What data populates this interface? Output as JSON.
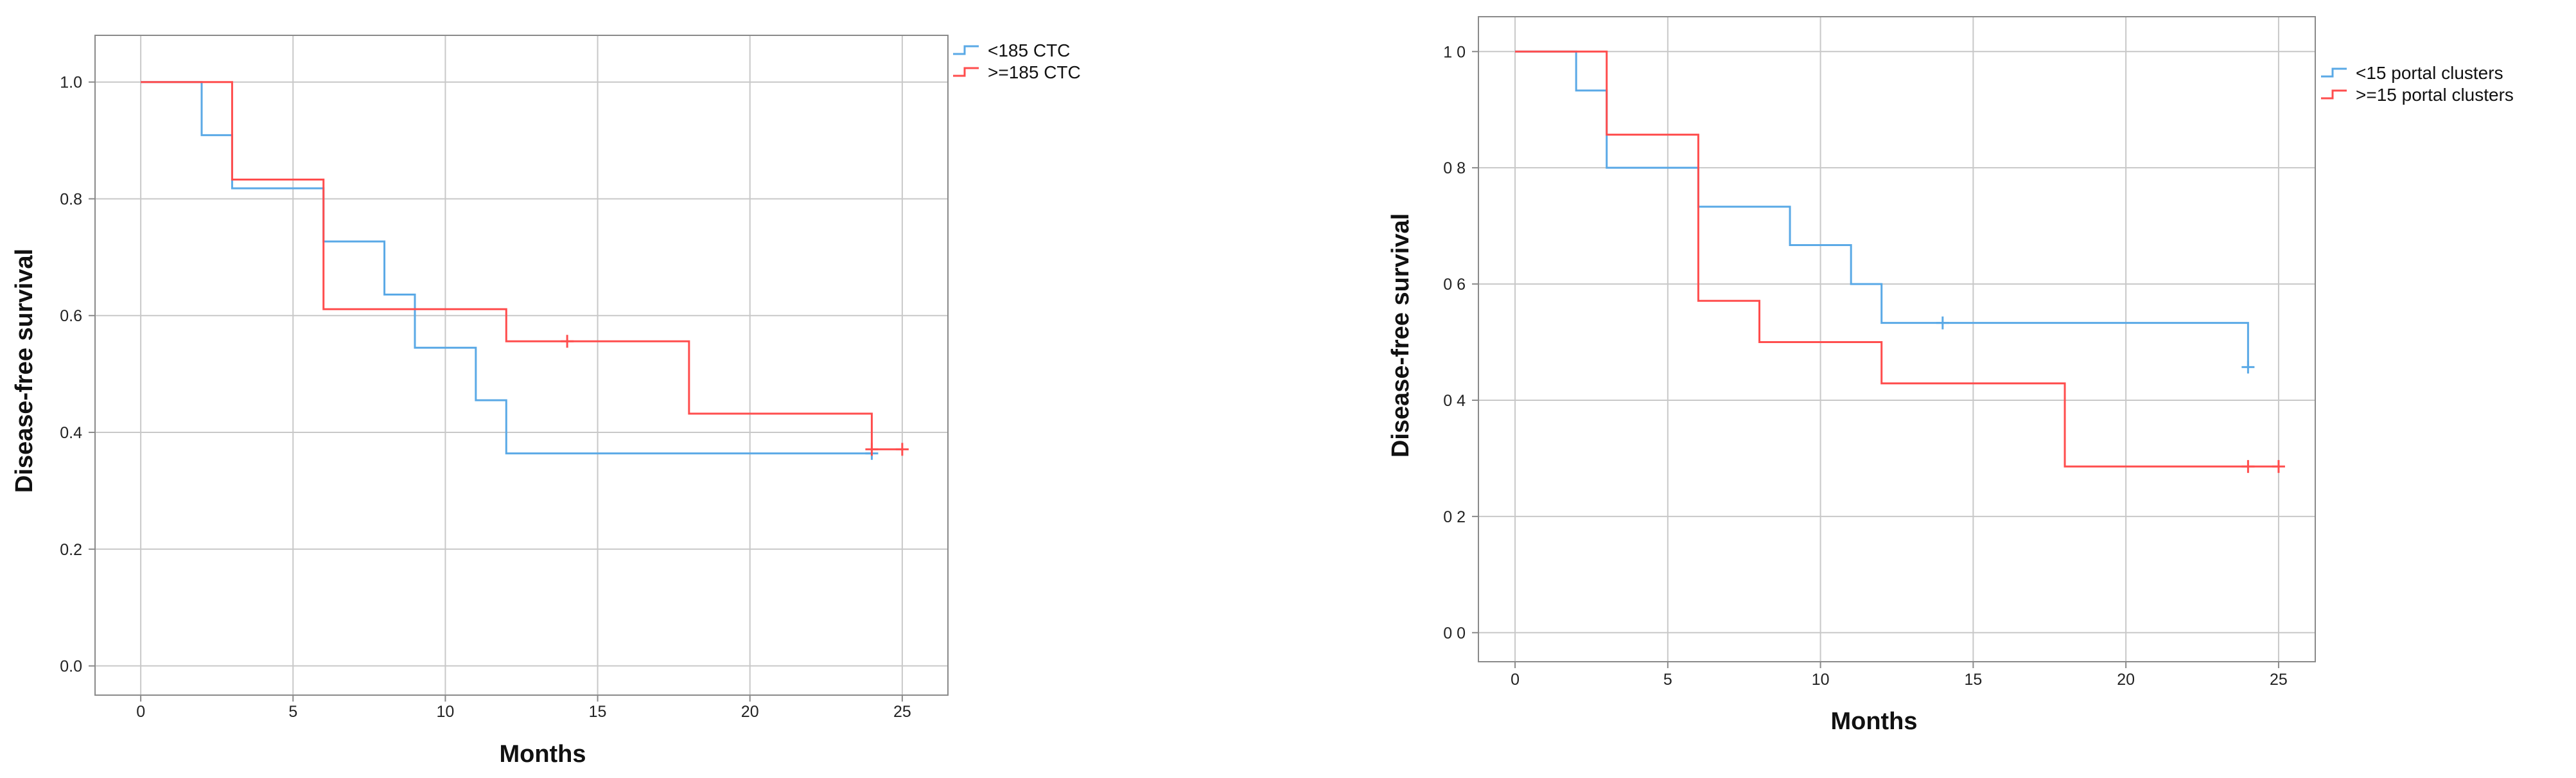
{
  "chart_data": [
    {
      "type": "line",
      "step": true,
      "xlabel": "Months",
      "ylabel": "Disease-free survival",
      "xticks": [
        0,
        5,
        10,
        15,
        20,
        25
      ],
      "yticks": [
        0.0,
        0.2,
        0.4,
        0.6,
        0.8,
        1.0
      ],
      "yticklabels": [
        "0.0",
        "0.2",
        "0.4",
        "0.6",
        "0.8",
        "1.0"
      ],
      "xlim": [
        -1.5,
        26.5
      ],
      "ylim": [
        -0.05,
        1.08
      ],
      "grid": true,
      "legend_position": "right",
      "series": [
        {
          "name": "<185 CTC",
          "color": "#5aa9e6",
          "x": [
            0,
            2,
            3,
            6,
            8,
            9,
            11,
            12,
            24
          ],
          "y": [
            1.0,
            0.909,
            0.818,
            0.727,
            0.636,
            0.545,
            0.455,
            0.364,
            0.364
          ],
          "censored": [
            {
              "x": 24,
              "y": 0.364
            }
          ]
        },
        {
          "name": ">=185 CTC",
          "color": "#ff4d4d",
          "x": [
            0,
            3,
            6,
            12,
            18,
            24,
            25
          ],
          "y": [
            1.0,
            0.833,
            0.611,
            0.556,
            0.432,
            0.371,
            0.371
          ],
          "censored": [
            {
              "x": 14,
              "y": 0.556
            },
            {
              "x": 24,
              "y": 0.371
            },
            {
              "x": 25,
              "y": 0.371
            }
          ]
        }
      ]
    },
    {
      "type": "line",
      "step": true,
      "xlabel": "Months",
      "ylabel": "Disease-free survival",
      "xticks": [
        0,
        5,
        10,
        15,
        20,
        25
      ],
      "yticks": [
        0.0,
        0.2,
        0.4,
        0.6,
        0.8,
        1.0
      ],
      "yticklabels": [
        "0 0",
        "0 2",
        "0 4",
        "0 6",
        "0 8",
        "1 0"
      ],
      "xlim": [
        -1.2,
        26.2
      ],
      "ylim": [
        -0.05,
        1.06
      ],
      "grid": true,
      "legend_position": "right",
      "series": [
        {
          "name": "<15 portal clusters",
          "color": "#5aa9e6",
          "x": [
            0,
            2,
            3,
            6,
            9,
            11,
            12,
            24
          ],
          "y": [
            1.0,
            0.933,
            0.8,
            0.733,
            0.667,
            0.6,
            0.533,
            0.457
          ],
          "censored": [
            {
              "x": 14,
              "y": 0.533
            },
            {
              "x": 24,
              "y": 0.457
            }
          ]
        },
        {
          "name": ">=15 portal clusters",
          "color": "#ff4d4d",
          "x": [
            0,
            3,
            6,
            8,
            12,
            18,
            25
          ],
          "y": [
            1.0,
            0.857,
            0.571,
            0.5,
            0.429,
            0.286,
            0.286
          ],
          "censored": [
            {
              "x": 24,
              "y": 0.286
            },
            {
              "x": 25,
              "y": 0.286
            }
          ]
        }
      ]
    }
  ]
}
